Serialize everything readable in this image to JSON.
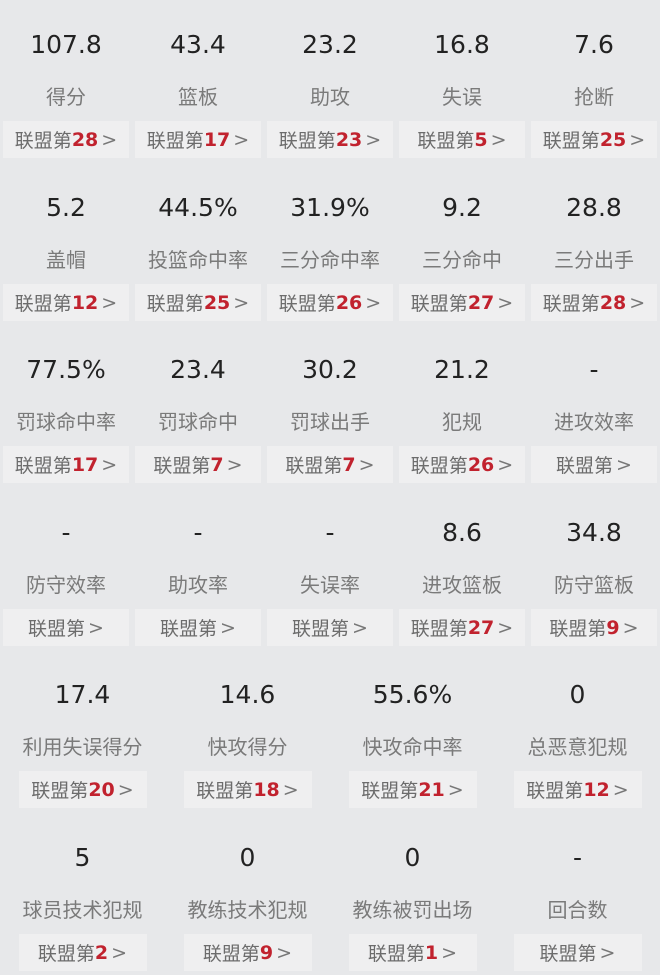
{
  "rank_prefix": "联盟第",
  "colors": {
    "background": "#e7e8ea",
    "rank_number": "#c1222e",
    "value": "#222222",
    "label": "#7a7a7a"
  },
  "rows": [
    [
      {
        "value": "107.8",
        "label": "得分",
        "rank": "28"
      },
      {
        "value": "43.4",
        "label": "篮板",
        "rank": "17"
      },
      {
        "value": "23.2",
        "label": "助攻",
        "rank": "23"
      },
      {
        "value": "16.8",
        "label": "失误",
        "rank": "5"
      },
      {
        "value": "7.6",
        "label": "抢断",
        "rank": "25"
      }
    ],
    [
      {
        "value": "5.2",
        "label": "盖帽",
        "rank": "12"
      },
      {
        "value": "44.5%",
        "label": "投篮命中率",
        "rank": "25"
      },
      {
        "value": "31.9%",
        "label": "三分命中率",
        "rank": "26"
      },
      {
        "value": "9.2",
        "label": "三分命中",
        "rank": "27"
      },
      {
        "value": "28.8",
        "label": "三分出手",
        "rank": "28"
      }
    ],
    [
      {
        "value": "77.5%",
        "label": "罚球命中率",
        "rank": "17"
      },
      {
        "value": "23.4",
        "label": "罚球命中",
        "rank": "7"
      },
      {
        "value": "30.2",
        "label": "罚球出手",
        "rank": "7"
      },
      {
        "value": "21.2",
        "label": "犯规",
        "rank": "26"
      },
      {
        "value": "-",
        "label": "进攻效率",
        "rank": ""
      }
    ],
    [
      {
        "value": "-",
        "label": "防守效率",
        "rank": ""
      },
      {
        "value": "-",
        "label": "助攻率",
        "rank": ""
      },
      {
        "value": "-",
        "label": "失误率",
        "rank": ""
      },
      {
        "value": "8.6",
        "label": "进攻篮板",
        "rank": "27"
      },
      {
        "value": "34.8",
        "label": "防守篮板",
        "rank": "9"
      }
    ],
    [
      {
        "value": "17.4",
        "label": "利用失误得分",
        "rank": "20"
      },
      {
        "value": "14.6",
        "label": "快攻得分",
        "rank": "18"
      },
      {
        "value": "55.6%",
        "label": "快攻命中率",
        "rank": "21"
      },
      {
        "value": "0",
        "label": "总恶意犯规",
        "rank": "12"
      }
    ],
    [
      {
        "value": "5",
        "label": "球员技术犯规",
        "rank": "2"
      },
      {
        "value": "0",
        "label": "教练技术犯规",
        "rank": "9"
      },
      {
        "value": "0",
        "label": "教练被罚出场",
        "rank": "1"
      },
      {
        "value": "-",
        "label": "回合数",
        "rank": ""
      }
    ]
  ]
}
